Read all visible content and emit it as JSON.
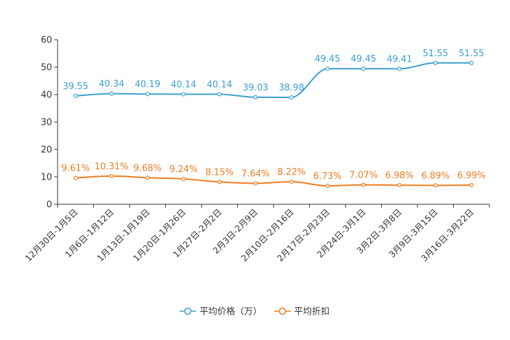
{
  "chart_data": {
    "type": "line",
    "title": "",
    "xlabel": "",
    "ylabel": "",
    "ylim": [
      0,
      60
    ],
    "yticks": [
      0,
      10,
      20,
      30,
      40,
      50,
      60
    ],
    "grid": false,
    "legend_position": "bottom-center",
    "categories": [
      "12月30日-1月5日",
      "1月6日-1月12日",
      "1月13日-1月19日",
      "1月20日-1月26日",
      "1月27日-2月2日",
      "2月3日-2月9日",
      "2月10日-2月16日",
      "2月17日-2月23日",
      "2月24日-3月1日",
      "3月2日-3月8日",
      "3月9日-3月15日",
      "3月16日-3月22日"
    ],
    "series": [
      {
        "name": "平均价格（万）",
        "color": "#3a9fd0",
        "values": [
          39.55,
          40.34,
          40.19,
          40.14,
          40.14,
          39.03,
          38.98,
          49.45,
          49.45,
          49.41,
          51.55,
          51.55
        ],
        "labels": [
          "39.55",
          "40.34",
          "40.19",
          "40.14",
          "40.14",
          "39.03",
          "38.98",
          "49.45",
          "49.45",
          "49.41",
          "51.55",
          "51.55"
        ]
      },
      {
        "name": "平均折扣",
        "color": "#f07b1e",
        "values": [
          9.61,
          10.31,
          9.68,
          9.24,
          8.15,
          7.64,
          8.22,
          6.73,
          7.07,
          6.98,
          6.89,
          6.99
        ],
        "labels": [
          "9.61%",
          "10.31%",
          "9.68%",
          "9.24%",
          "8.15%",
          "7.64%",
          "8.22%",
          "6.73%",
          "7.07%",
          "6.98%",
          "6.89%",
          "6.99%"
        ]
      }
    ]
  }
}
